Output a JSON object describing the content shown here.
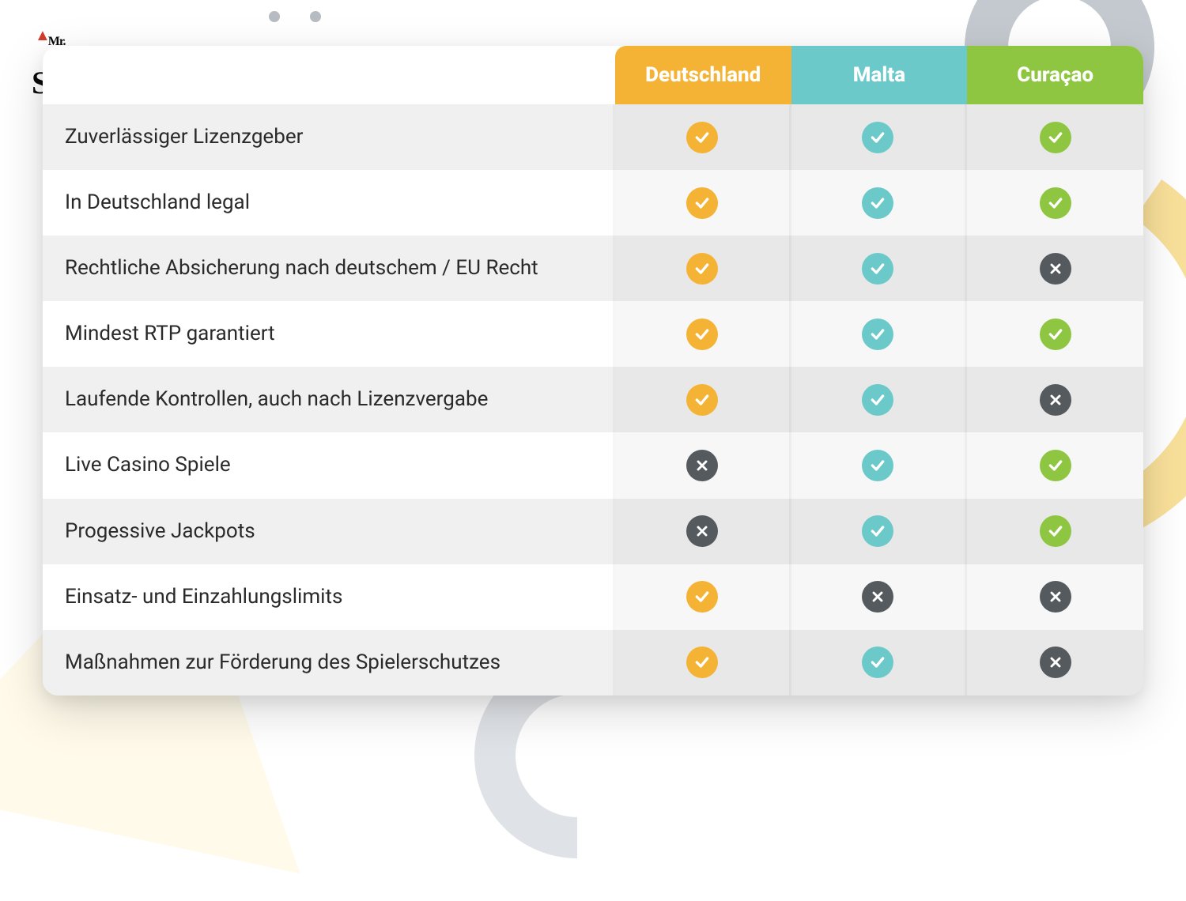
{
  "logo": {
    "mr": "Mr.",
    "name": "Spieler"
  },
  "colors": {
    "columns": [
      "#f5b335",
      "#6cc9c9",
      "#8ec641"
    ],
    "no_bg": "#555a5e",
    "icon_fg": "#ffffff"
  },
  "table": {
    "columns": [
      "Deutschland",
      "Malta",
      "Curaçao"
    ],
    "rows": [
      {
        "label": "Zuverlässiger Lizenzgeber",
        "values": [
          true,
          true,
          true
        ]
      },
      {
        "label": "In Deutschland legal",
        "values": [
          true,
          true,
          true
        ]
      },
      {
        "label": "Rechtliche Absicherung nach deutschem / EU Recht",
        "values": [
          true,
          true,
          false
        ]
      },
      {
        "label": "Mindest RTP garantiert",
        "values": [
          true,
          true,
          true
        ]
      },
      {
        "label": "Laufende Kontrollen, auch nach Lizenzvergabe",
        "values": [
          true,
          true,
          false
        ]
      },
      {
        "label": "Live Casino Spiele",
        "values": [
          false,
          true,
          true
        ]
      },
      {
        "label": "Progessive Jackpots",
        "values": [
          false,
          true,
          true
        ]
      },
      {
        "label": "Einsatz- und Einzahlungslimits",
        "values": [
          true,
          false,
          false
        ]
      },
      {
        "label": "Maßnahmen zur Förderung des Spielerschutzes",
        "values": [
          true,
          true,
          false
        ]
      }
    ]
  }
}
